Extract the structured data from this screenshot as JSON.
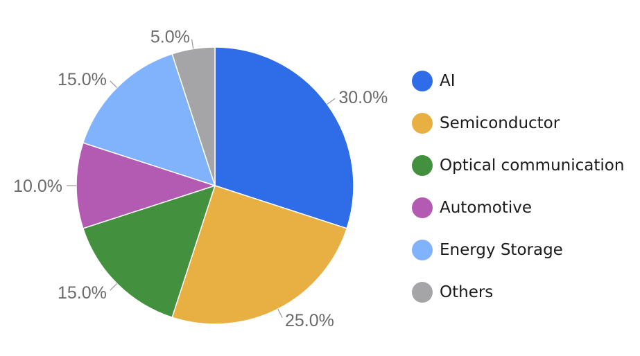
{
  "chart_data": {
    "type": "pie",
    "categories": [
      "AI",
      "Semiconductor",
      "Optical communication",
      "Automotive",
      "Energy Storage",
      "Others"
    ],
    "values": [
      30.0,
      25.0,
      15.0,
      10.0,
      15.0,
      5.0
    ],
    "labels": [
      "30.0%",
      "25.0%",
      "15.0%",
      "10.0%",
      "15.0%",
      "5.0%"
    ],
    "colors": [
      "#2f6de8",
      "#e8b042",
      "#43903f",
      "#b35bb3",
      "#80b3fb",
      "#a5a5a8"
    ],
    "legend_position": "right"
  }
}
